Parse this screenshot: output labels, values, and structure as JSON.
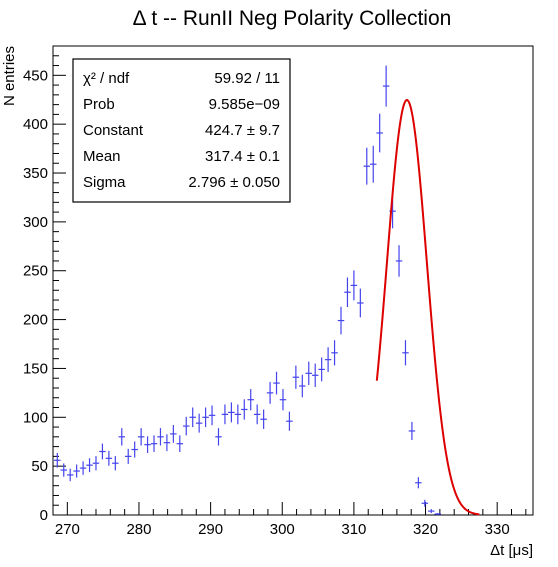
{
  "chart_data": {
    "type": "scatter",
    "title": "Δ t -- RunII Neg Polarity Collection",
    "xlabel": "Δt [μs]",
    "ylabel": "N entries",
    "xlim": [
      268,
      335
    ],
    "ylim": [
      0,
      480
    ],
    "x_ticks": [
      270,
      280,
      290,
      300,
      310,
      320,
      330
    ],
    "y_ticks": [
      0,
      50,
      100,
      150,
      200,
      250,
      300,
      350,
      400,
      450
    ],
    "x_tick_labels": [
      "270",
      "280",
      "290",
      "300",
      "310",
      "320",
      "330"
    ],
    "y_tick_labels": [
      "0",
      "50",
      "100",
      "150",
      "200",
      "250",
      "300",
      "350",
      "400",
      "450"
    ],
    "bin_width": 0.9,
    "series": [
      {
        "type": "histogram-points",
        "color": "#4444ee",
        "x": [
          268.6,
          269.5,
          270.4,
          271.3,
          272.2,
          273.1,
          274.0,
          274.9,
          275.8,
          276.7,
          277.6,
          278.5,
          279.4,
          280.3,
          281.2,
          282.1,
          283.0,
          283.9,
          284.8,
          285.7,
          286.6,
          287.5,
          288.4,
          289.3,
          290.2,
          291.1,
          292.0,
          292.9,
          293.8,
          294.7,
          295.6,
          296.5,
          297.4,
          298.3,
          299.2,
          300.1,
          301.0,
          301.9,
          302.8,
          303.7,
          304.6,
          305.5,
          306.4,
          307.3,
          308.2,
          309.1,
          310.0,
          310.9,
          311.8,
          312.7,
          313.6,
          314.5,
          315.4,
          316.3,
          317.2,
          318.1,
          319.0,
          319.9,
          320.8,
          321.7,
          322.6,
          323.5,
          324.4,
          325.3,
          326.2,
          327.1,
          328.0,
          328.9,
          329.8,
          330.7,
          331.6,
          332.5,
          333.4,
          334.3
        ],
        "y": [
          56,
          46,
          41,
          45,
          48,
          51,
          53,
          65,
          58,
          53,
          80,
          60,
          67,
          80,
          72,
          73,
          80,
          74,
          83,
          73,
          91,
          100,
          94,
          100,
          102,
          80,
          103,
          105,
          103,
          108,
          118,
          103,
          98,
          125,
          135,
          118,
          96,
          141,
          132,
          145,
          143,
          149,
          159,
          166,
          199,
          228,
          235,
          217,
          357,
          359,
          391,
          439,
          311,
          260,
          166,
          86,
          33,
          12,
          4,
          1,
          0,
          0,
          0,
          0,
          0,
          0,
          0,
          0,
          0,
          0,
          0,
          0,
          0,
          0
        ],
        "yerr": [
          7.5,
          6.8,
          6.4,
          6.7,
          6.9,
          7.1,
          7.3,
          8.1,
          7.6,
          7.3,
          8.9,
          7.7,
          8.2,
          8.9,
          8.5,
          8.5,
          8.9,
          8.6,
          9.1,
          8.5,
          9.5,
          10,
          9.7,
          10,
          10.1,
          8.9,
          10.1,
          10.2,
          10.1,
          10.4,
          10.9,
          10.1,
          9.9,
          11.2,
          11.6,
          10.9,
          9.8,
          11.9,
          11.5,
          12,
          12,
          12.2,
          12.6,
          12.9,
          14.1,
          15.1,
          15.3,
          14.7,
          18.9,
          18.9,
          19.8,
          21,
          17.6,
          16.1,
          12.9,
          9.3,
          5.7,
          3.5,
          2,
          1,
          0,
          0,
          0,
          0,
          0,
          0,
          0,
          0,
          0,
          0,
          0,
          0,
          0,
          0
        ]
      },
      {
        "type": "fit-curve",
        "color": "#dd0000",
        "model": "gaussian",
        "constant": 424.7,
        "mean": 317.4,
        "sigma": 2.796,
        "x_range": [
          313.2,
          327.5
        ]
      }
    ],
    "stats_box": {
      "rows": [
        {
          "label": "χ² / ndf",
          "value": "59.92 / 11"
        },
        {
          "label": "Prob",
          "value": "9.585e−09"
        },
        {
          "label": "Constant",
          "value": "424.7 ± 9.7"
        },
        {
          "label": "Mean",
          "value": "317.4 ± 0.1"
        },
        {
          "label": "Sigma",
          "value": "2.796 ± 0.050"
        }
      ]
    },
    "grid": false,
    "legend": "top-left"
  }
}
